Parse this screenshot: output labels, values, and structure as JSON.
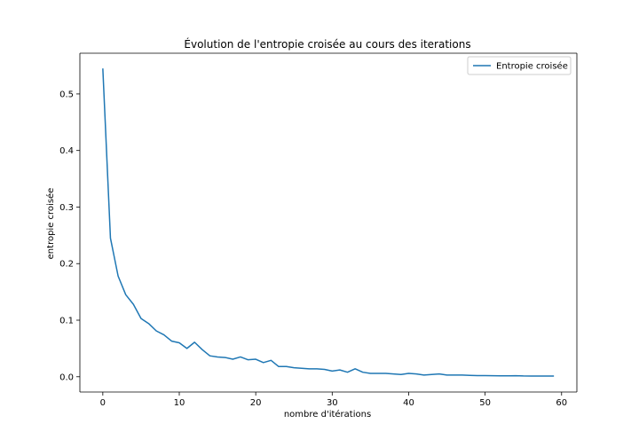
{
  "chart_data": {
    "type": "line",
    "title": "Évolution de l'entropie croisée au cours des iterations",
    "xlabel": "nombre d'itérations",
    "ylabel": "entropie croisée",
    "xlim": [
      -3,
      62
    ],
    "ylim": [
      -0.027,
      0.572
    ],
    "xticks": [
      0,
      10,
      20,
      30,
      40,
      50,
      60
    ],
    "yticks": [
      0.0,
      0.1,
      0.2,
      0.3,
      0.4,
      0.5
    ],
    "xtick_labels": [
      "0",
      "10",
      "20",
      "30",
      "40",
      "50",
      "60"
    ],
    "ytick_labels": [
      "0.0",
      "0.1",
      "0.2",
      "0.3",
      "0.4",
      "0.5"
    ],
    "grid": false,
    "legend_position": "top-right",
    "series": [
      {
        "name": "Entropie croisée",
        "color": "#1f77b4",
        "x": [
          0,
          1,
          2,
          3,
          4,
          5,
          6,
          7,
          8,
          9,
          10,
          11,
          12,
          13,
          14,
          15,
          16,
          17,
          18,
          19,
          20,
          21,
          22,
          23,
          24,
          25,
          26,
          27,
          28,
          29,
          30,
          31,
          32,
          33,
          34,
          35,
          36,
          37,
          38,
          39,
          40,
          41,
          42,
          43,
          44,
          45,
          46,
          47,
          48,
          49,
          50,
          51,
          52,
          53,
          54,
          55,
          56,
          57,
          58,
          59
        ],
        "values": [
          0.545,
          0.245,
          0.178,
          0.145,
          0.128,
          0.103,
          0.094,
          0.081,
          0.074,
          0.063,
          0.06,
          0.05,
          0.061,
          0.048,
          0.037,
          0.035,
          0.034,
          0.031,
          0.035,
          0.03,
          0.031,
          0.025,
          0.029,
          0.018,
          0.018,
          0.016,
          0.015,
          0.014,
          0.014,
          0.013,
          0.01,
          0.012,
          0.008,
          0.014,
          0.008,
          0.006,
          0.006,
          0.006,
          0.005,
          0.004,
          0.006,
          0.005,
          0.003,
          0.004,
          0.005,
          0.003,
          0.003,
          0.003,
          0.0025,
          0.002,
          0.002,
          0.0018,
          0.0017,
          0.0016,
          0.0018,
          0.0014,
          0.0013,
          0.0013,
          0.0012,
          0.0012
        ]
      }
    ]
  }
}
